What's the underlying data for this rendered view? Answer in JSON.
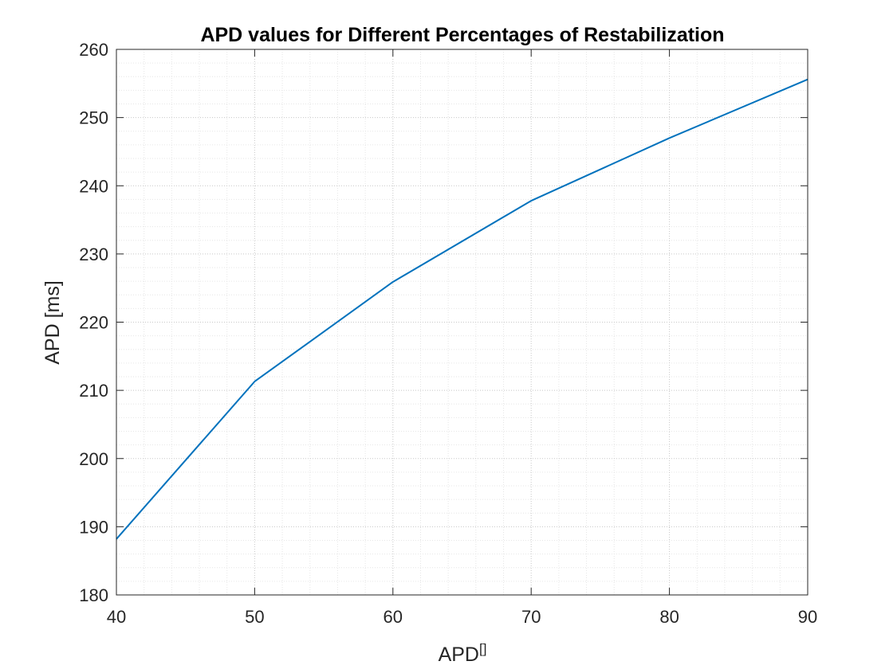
{
  "chart_data": {
    "type": "line",
    "title": "APD values for Different Percentages of Restabilization",
    "xlabel": "APD",
    "xlabel_superscript": "[]",
    "ylabel": "APD [ms]",
    "xlim": [
      40,
      90
    ],
    "ylim": [
      180,
      260
    ],
    "x_ticks": [
      40,
      50,
      60,
      70,
      80,
      90
    ],
    "y_ticks": [
      180,
      190,
      200,
      210,
      220,
      230,
      240,
      250,
      260
    ],
    "grid": true,
    "minor_grid": true,
    "box": true,
    "series": [
      {
        "color": "#0072BD",
        "x": [
          40,
          50,
          60,
          70,
          80,
          90
        ],
        "y": [
          188.2,
          211.3,
          225.9,
          237.8,
          247.0,
          255.6
        ]
      }
    ]
  }
}
